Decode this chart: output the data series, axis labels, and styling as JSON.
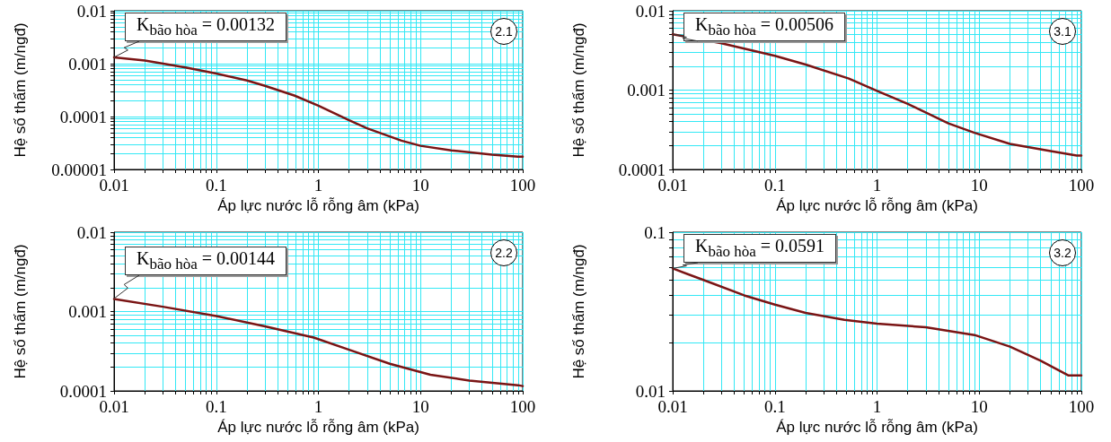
{
  "chart_data": [
    {
      "type": "line",
      "xlabel": "Áp lực nước lỗ rỗng âm (kPa)",
      "ylabel": "Hệ số thấm (m/ngđ)",
      "log": "xy",
      "grid": true,
      "marker": "none",
      "line_style": "solid",
      "xlim": [
        0.01,
        100
      ],
      "xticks": [
        0.01,
        {
          "value": 0.02,
          "label": null
        },
        {
          "value": 0.03,
          "label": null
        },
        {
          "value": 0.04,
          "label": null
        },
        {
          "value": 0.05,
          "label": null
        },
        {
          "value": 0.06,
          "label": null
        },
        {
          "value": 0.07,
          "label": null
        },
        {
          "value": 0.08,
          "label": null
        },
        {
          "value": 0.09,
          "label": null
        },
        0.1,
        {
          "value": 0.2,
          "label": null
        },
        {
          "value": 0.3,
          "label": null
        },
        {
          "value": 0.4,
          "label": null
        },
        {
          "value": 0.5,
          "label": null
        },
        {
          "value": 0.6,
          "label": null
        },
        {
          "value": 0.7,
          "label": null
        },
        {
          "value": 0.8,
          "label": null
        },
        {
          "value": 0.9,
          "label": null
        },
        1,
        {
          "value": 2,
          "label": null
        },
        {
          "value": 3,
          "label": null
        },
        {
          "value": 4,
          "label": null
        },
        {
          "value": 5,
          "label": null
        },
        {
          "value": 6,
          "label": null
        },
        {
          "value": 7,
          "label": null
        },
        {
          "value": 8,
          "label": null
        },
        {
          "value": 9,
          "label": null
        },
        10,
        {
          "value": 20,
          "label": null
        },
        {
          "value": 30,
          "label": null
        },
        {
          "value": 40,
          "label": null
        },
        {
          "value": 50,
          "label": null
        },
        {
          "value": 60,
          "label": null
        },
        {
          "value": 70,
          "label": null
        },
        {
          "value": 80,
          "label": null
        },
        {
          "value": 90,
          "label": null
        },
        100
      ],
      "ylim": [
        1e-05,
        0.01
      ],
      "yticks": [
        {
          "value": 1e-05,
          "label": "0.00001"
        },
        {
          "value": 2e-05,
          "label": null
        },
        {
          "value": 3e-05,
          "label": null
        },
        {
          "value": 4e-05,
          "label": null
        },
        {
          "value": 5e-05,
          "label": null
        },
        {
          "value": 6e-05,
          "label": null
        },
        {
          "value": 7e-05,
          "label": null
        },
        {
          "value": 8e-05,
          "label": null
        },
        {
          "value": 9e-05,
          "label": null
        },
        0.0001,
        {
          "value": 0.0002,
          "label": null
        },
        {
          "value": 0.0003,
          "label": null
        },
        {
          "value": 0.0004,
          "label": null
        },
        {
          "value": 0.0005,
          "label": null
        },
        {
          "value": 0.0006,
          "label": null
        },
        {
          "value": 0.0007,
          "label": null
        },
        {
          "value": 0.0008,
          "label": null
        },
        {
          "value": 0.0009,
          "label": null
        },
        0.001,
        {
          "value": 0.002,
          "label": null
        },
        {
          "value": 0.003,
          "label": null
        },
        {
          "value": 0.004,
          "label": null
        },
        {
          "value": 0.005,
          "label": null
        },
        {
          "value": 0.006,
          "label": null
        },
        {
          "value": 0.007,
          "label": null
        },
        {
          "value": 0.008,
          "label": null
        },
        {
          "value": 0.009,
          "label": null
        },
        0.01
      ],
      "x": [
        0.01,
        0.02,
        0.05,
        0.1,
        0.2,
        0.3,
        0.58,
        1,
        2,
        3,
        6.5,
        10,
        20,
        50,
        90,
        100
      ],
      "series": [
        {
          "color": "#7a1414",
          "values": [
            0.00132,
            0.00115,
            0.00085,
            0.00065,
            0.00048,
            0.00038,
            0.00025,
            0.00016,
            8.5e-05,
            6e-05,
            3.5e-05,
            2.8e-05,
            2.3e-05,
            1.9e-05,
            1.75e-05,
            1.75e-05
          ]
        }
      ],
      "annotations": [
        "K$_{bão hòa}$ = 0.00132",
        "2.1"
      ]
    },
    {
      "type": "line",
      "xlabel": "Áp lực nước lỗ rỗng âm (kPa)",
      "ylabel": "Hệ số thấm (m/ngđ)",
      "log": "xy",
      "grid": true,
      "marker": "none",
      "line_style": "solid",
      "xlim": [
        0.01,
        100
      ],
      "xticks": [
        0.01,
        {
          "value": 0.02,
          "label": null
        },
        {
          "value": 0.03,
          "label": null
        },
        {
          "value": 0.04,
          "label": null
        },
        {
          "value": 0.05,
          "label": null
        },
        {
          "value": 0.06,
          "label": null
        },
        {
          "value": 0.07,
          "label": null
        },
        {
          "value": 0.08,
          "label": null
        },
        {
          "value": 0.09,
          "label": null
        },
        0.1,
        {
          "value": 0.2,
          "label": null
        },
        {
          "value": 0.3,
          "label": null
        },
        {
          "value": 0.4,
          "label": null
        },
        {
          "value": 0.5,
          "label": null
        },
        {
          "value": 0.6,
          "label": null
        },
        {
          "value": 0.7,
          "label": null
        },
        {
          "value": 0.8,
          "label": null
        },
        {
          "value": 0.9,
          "label": null
        },
        1,
        {
          "value": 2,
          "label": null
        },
        {
          "value": 3,
          "label": null
        },
        {
          "value": 4,
          "label": null
        },
        {
          "value": 5,
          "label": null
        },
        {
          "value": 6,
          "label": null
        },
        {
          "value": 7,
          "label": null
        },
        {
          "value": 8,
          "label": null
        },
        {
          "value": 9,
          "label": null
        },
        10,
        {
          "value": 20,
          "label": null
        },
        {
          "value": 30,
          "label": null
        },
        {
          "value": 40,
          "label": null
        },
        {
          "value": 50,
          "label": null
        },
        {
          "value": 60,
          "label": null
        },
        {
          "value": 70,
          "label": null
        },
        {
          "value": 80,
          "label": null
        },
        {
          "value": 90,
          "label": null
        },
        100
      ],
      "ylim": [
        0.0001,
        0.01
      ],
      "yticks": [
        0.0001,
        {
          "value": 0.0002,
          "label": null
        },
        {
          "value": 0.0003,
          "label": null
        },
        {
          "value": 0.0004,
          "label": null
        },
        {
          "value": 0.0005,
          "label": null
        },
        {
          "value": 0.0006,
          "label": null
        },
        {
          "value": 0.0007,
          "label": null
        },
        {
          "value": 0.0008,
          "label": null
        },
        {
          "value": 0.0009,
          "label": null
        },
        0.001,
        {
          "value": 0.002,
          "label": null
        },
        {
          "value": 0.003,
          "label": null
        },
        {
          "value": 0.004,
          "label": null
        },
        {
          "value": 0.005,
          "label": null
        },
        {
          "value": 0.006,
          "label": null
        },
        {
          "value": 0.007,
          "label": null
        },
        {
          "value": 0.008,
          "label": null
        },
        {
          "value": 0.009,
          "label": null
        },
        0.01
      ],
      "x": [
        0.01,
        0.03,
        0.1,
        0.2,
        0.53,
        1,
        2,
        5,
        9,
        20,
        50,
        90,
        100
      ],
      "series": [
        {
          "color": "#7a1414",
          "values": [
            0.00506,
            0.0039,
            0.0027,
            0.0021,
            0.0014,
            0.00098,
            0.00067,
            0.00038,
            0.00029,
            0.00021,
            0.00017,
            0.00015,
            0.00015
          ]
        }
      ],
      "annotations": [
        "K$_{bão hòa}$ = 0.00506",
        "3.1"
      ]
    },
    {
      "type": "line",
      "xlabel": "Áp lực nước lỗ rỗng âm (kPa)",
      "ylabel": "Hệ số thấm (m/ngđ)",
      "log": "xy",
      "grid": true,
      "marker": "none",
      "line_style": "solid",
      "xlim": [
        0.01,
        100
      ],
      "xticks": [
        0.01,
        {
          "value": 0.02,
          "label": null
        },
        {
          "value": 0.03,
          "label": null
        },
        {
          "value": 0.04,
          "label": null
        },
        {
          "value": 0.05,
          "label": null
        },
        {
          "value": 0.06,
          "label": null
        },
        {
          "value": 0.07,
          "label": null
        },
        {
          "value": 0.08,
          "label": null
        },
        {
          "value": 0.09,
          "label": null
        },
        0.1,
        {
          "value": 0.2,
          "label": null
        },
        {
          "value": 0.3,
          "label": null
        },
        {
          "value": 0.4,
          "label": null
        },
        {
          "value": 0.5,
          "label": null
        },
        {
          "value": 0.6,
          "label": null
        },
        {
          "value": 0.7,
          "label": null
        },
        {
          "value": 0.8,
          "label": null
        },
        {
          "value": 0.9,
          "label": null
        },
        1,
        {
          "value": 2,
          "label": null
        },
        {
          "value": 3,
          "label": null
        },
        {
          "value": 4,
          "label": null
        },
        {
          "value": 5,
          "label": null
        },
        {
          "value": 6,
          "label": null
        },
        {
          "value": 7,
          "label": null
        },
        {
          "value": 8,
          "label": null
        },
        {
          "value": 9,
          "label": null
        },
        10,
        {
          "value": 20,
          "label": null
        },
        {
          "value": 30,
          "label": null
        },
        {
          "value": 40,
          "label": null
        },
        {
          "value": 50,
          "label": null
        },
        {
          "value": 60,
          "label": null
        },
        {
          "value": 70,
          "label": null
        },
        {
          "value": 80,
          "label": null
        },
        {
          "value": 90,
          "label": null
        },
        100
      ],
      "ylim": [
        0.0001,
        0.01
      ],
      "yticks": [
        0.0001,
        {
          "value": 0.0002,
          "label": null
        },
        {
          "value": 0.0003,
          "label": null
        },
        {
          "value": 0.0004,
          "label": null
        },
        {
          "value": 0.0005,
          "label": null
        },
        {
          "value": 0.0006,
          "label": null
        },
        {
          "value": 0.0007,
          "label": null
        },
        {
          "value": 0.0008,
          "label": null
        },
        {
          "value": 0.0009,
          "label": null
        },
        0.001,
        {
          "value": 0.002,
          "label": null
        },
        {
          "value": 0.003,
          "label": null
        },
        {
          "value": 0.004,
          "label": null
        },
        {
          "value": 0.005,
          "label": null
        },
        {
          "value": 0.006,
          "label": null
        },
        {
          "value": 0.007,
          "label": null
        },
        {
          "value": 0.008,
          "label": null
        },
        {
          "value": 0.009,
          "label": null
        },
        0.01
      ],
      "x": [
        0.01,
        0.03,
        0.1,
        0.3,
        0.9,
        2,
        5,
        12.5,
        30,
        90,
        100
      ],
      "series": [
        {
          "color": "#7a1414",
          "values": [
            0.00144,
            0.00115,
            0.00088,
            0.00065,
            0.00047,
            0.00033,
            0.00022,
            0.00016,
            0.000135,
            0.000118,
            0.000115
          ]
        }
      ],
      "annotations": [
        "K$_{bão hòa}$ = 0.00144",
        "2.2"
      ]
    },
    {
      "type": "line",
      "xlabel": "Áp lực nước lỗ rỗng âm (kPa)",
      "ylabel": "Hệ số thấm (m/ngđ)",
      "log": "xy",
      "grid": true,
      "marker": "none",
      "line_style": "solid",
      "xlim": [
        0.01,
        100
      ],
      "xticks": [
        0.01,
        {
          "value": 0.02,
          "label": null
        },
        {
          "value": 0.03,
          "label": null
        },
        {
          "value": 0.04,
          "label": null
        },
        {
          "value": 0.05,
          "label": null
        },
        {
          "value": 0.06,
          "label": null
        },
        {
          "value": 0.07,
          "label": null
        },
        {
          "value": 0.08,
          "label": null
        },
        {
          "value": 0.09,
          "label": null
        },
        0.1,
        {
          "value": 0.2,
          "label": null
        },
        {
          "value": 0.3,
          "label": null
        },
        {
          "value": 0.4,
          "label": null
        },
        {
          "value": 0.5,
          "label": null
        },
        {
          "value": 0.6,
          "label": null
        },
        {
          "value": 0.7,
          "label": null
        },
        {
          "value": 0.8,
          "label": null
        },
        {
          "value": 0.9,
          "label": null
        },
        1,
        {
          "value": 2,
          "label": null
        },
        {
          "value": 3,
          "label": null
        },
        {
          "value": 4,
          "label": null
        },
        {
          "value": 5,
          "label": null
        },
        {
          "value": 6,
          "label": null
        },
        {
          "value": 7,
          "label": null
        },
        {
          "value": 8,
          "label": null
        },
        {
          "value": 9,
          "label": null
        },
        10,
        {
          "value": 20,
          "label": null
        },
        {
          "value": 30,
          "label": null
        },
        {
          "value": 40,
          "label": null
        },
        {
          "value": 50,
          "label": null
        },
        {
          "value": 60,
          "label": null
        },
        {
          "value": 70,
          "label": null
        },
        {
          "value": 80,
          "label": null
        },
        {
          "value": 90,
          "label": null
        },
        100
      ],
      "ylim": [
        0.01,
        0.1
      ],
      "yticks": [
        0.01,
        {
          "value": 0.02,
          "label": null
        },
        {
          "value": 0.03,
          "label": null
        },
        {
          "value": 0.04,
          "label": null
        },
        {
          "value": 0.05,
          "label": null
        },
        {
          "value": 0.06,
          "label": null
        },
        {
          "value": 0.07,
          "label": null
        },
        {
          "value": 0.08,
          "label": null
        },
        {
          "value": 0.09,
          "label": null
        },
        0.1
      ],
      "x": [
        0.01,
        0.02,
        0.05,
        0.1,
        0.2,
        0.48,
        1,
        3,
        9,
        20,
        40,
        75,
        100
      ],
      "series": [
        {
          "color": "#7a1414",
          "values": [
            0.0591,
            0.05,
            0.04,
            0.035,
            0.031,
            0.028,
            0.0265,
            0.0252,
            0.0225,
            0.019,
            0.0155,
            0.0125,
            0.0125
          ]
        }
      ],
      "annotations": [
        "K$_{bão hòa}$ = 0.0591",
        "3.2"
      ]
    }
  ]
}
